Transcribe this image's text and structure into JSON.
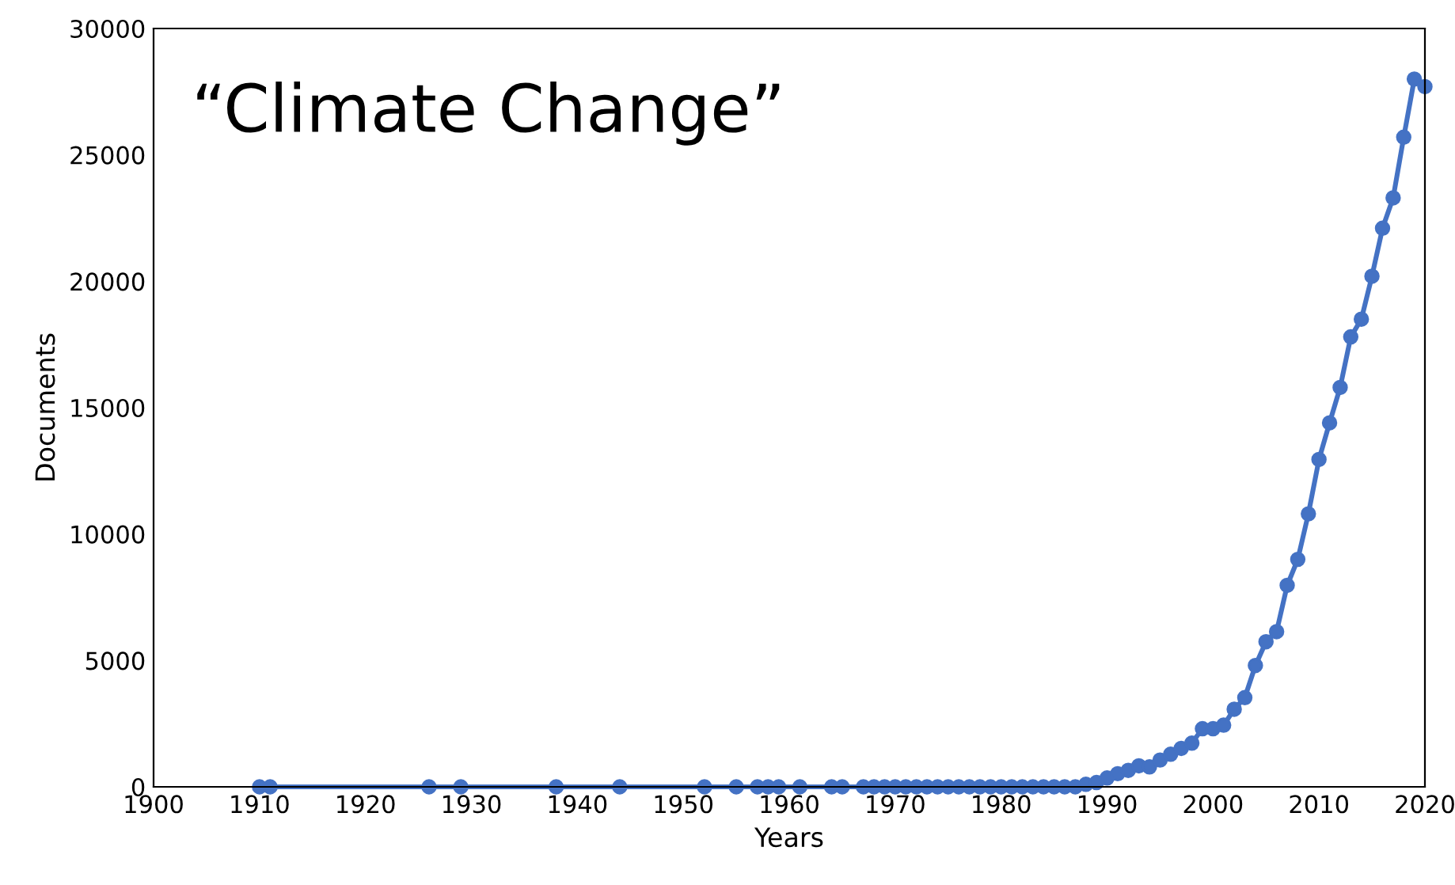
{
  "chart_data": {
    "type": "line",
    "xlabel": "Years",
    "ylabel": "Documents",
    "annotations": [
      "“Climate Change”"
    ],
    "x": [
      1910,
      1911,
      1926,
      1929,
      1938,
      1944,
      1952,
      1955,
      1957,
      1958,
      1959,
      1961,
      1964,
      1965,
      1967,
      1968,
      1969,
      1970,
      1971,
      1972,
      1973,
      1974,
      1975,
      1976,
      1977,
      1978,
      1979,
      1980,
      1981,
      1982,
      1983,
      1984,
      1985,
      1986,
      1987,
      1988,
      1989,
      1990,
      1991,
      1992,
      1993,
      1994,
      1995,
      1996,
      1997,
      1998,
      1999,
      2000,
      2001,
      2002,
      2003,
      2004,
      2005,
      2006,
      2007,
      2008,
      2009,
      2010,
      2011,
      2012,
      2013,
      2014,
      2015,
      2016,
      2017,
      2018,
      2019,
      2020
    ],
    "series": [
      {
        "color": "#4472c4",
        "values": [
          0,
          0,
          0,
          0,
          0,
          0,
          0,
          0,
          0,
          0,
          0,
          0,
          0,
          0,
          0,
          0,
          0,
          0,
          0,
          0,
          0,
          0,
          0,
          0,
          0,
          0,
          0,
          0,
          0,
          0,
          0,
          0,
          0,
          0,
          0,
          100,
          170,
          350,
          520,
          650,
          830,
          790,
          1060,
          1290,
          1520,
          1730,
          2300,
          2300,
          2440,
          3070,
          3530,
          4800,
          5740,
          6140,
          7970,
          9000,
          10800,
          12950,
          14400,
          15800,
          17800,
          18500,
          20200,
          22100,
          23300,
          25700,
          28000,
          27700
        ]
      }
    ],
    "xlim": [
      1900,
      2020
    ],
    "xticks": [
      1900,
      1910,
      1920,
      1930,
      1940,
      1950,
      1960,
      1970,
      1980,
      1990,
      2000,
      2010,
      2020
    ],
    "ylim": [
      0,
      30000
    ],
    "yticks": [
      0,
      5000,
      10000,
      15000,
      20000,
      25000,
      30000
    ],
    "grid": false,
    "marker": "circle",
    "line_style": "solid"
  }
}
